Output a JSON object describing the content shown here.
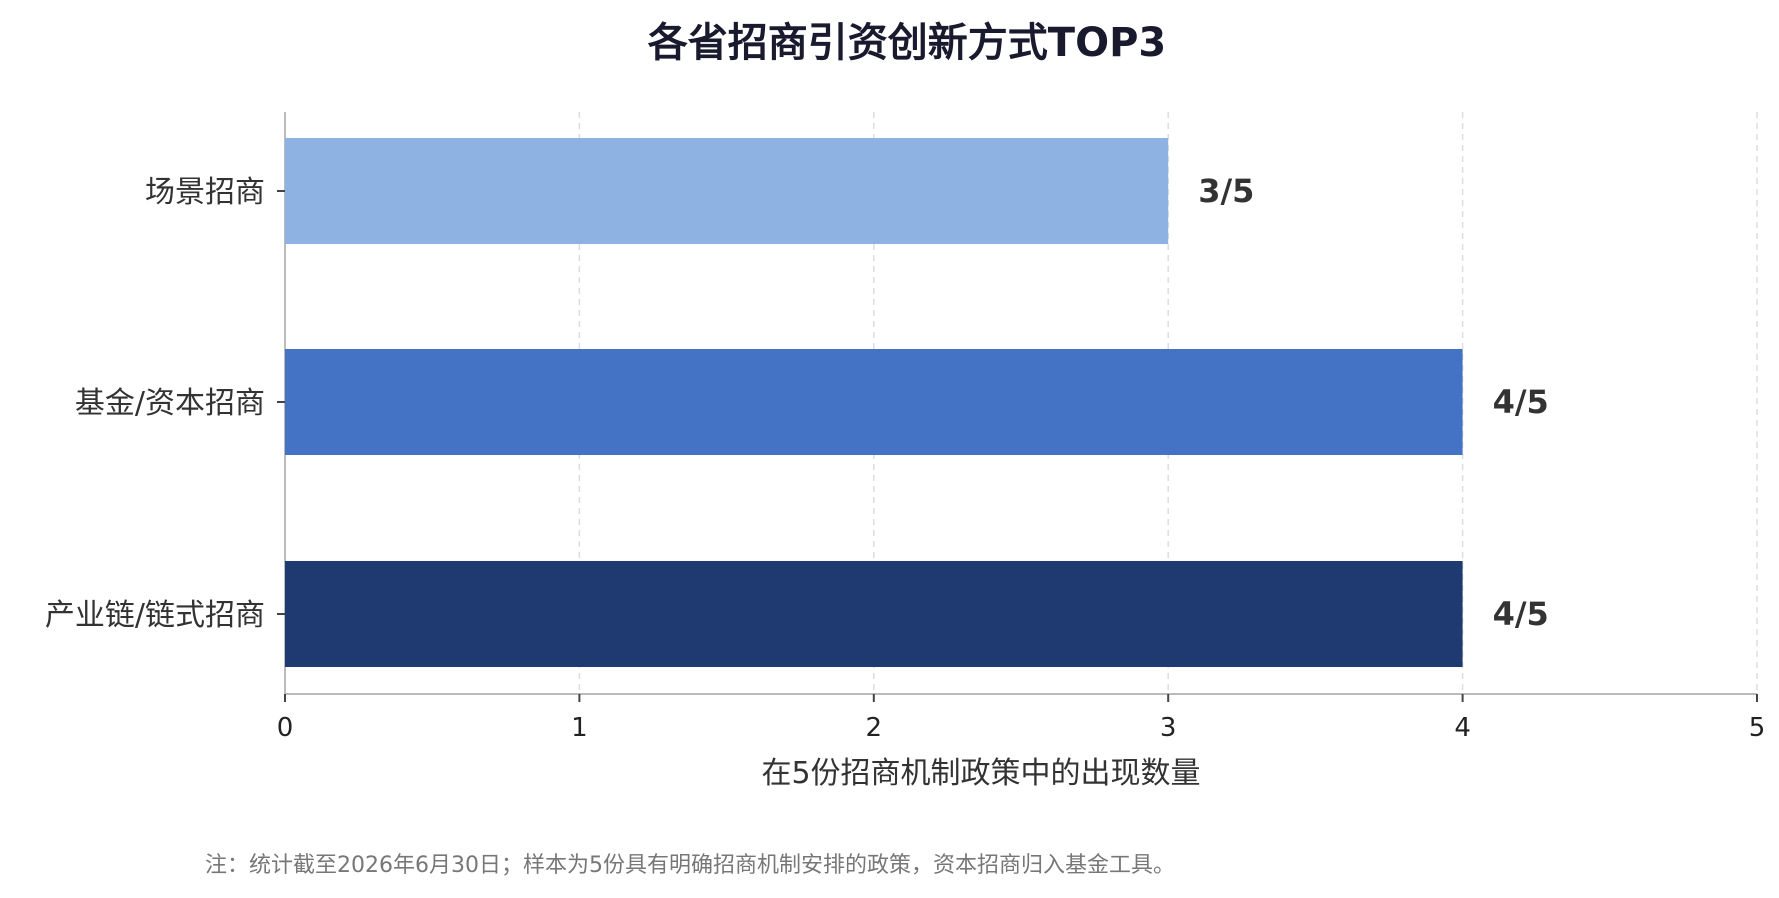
{
  "chart_data": {
    "type": "bar",
    "orientation": "horizontal",
    "title": "各省招商引资创新方式TOP3",
    "categories": [
      "场景招商",
      "基金/资本招商",
      "产业链/链式招商"
    ],
    "values": [
      3,
      4,
      4
    ],
    "data_labels": [
      "3/5",
      "4/5",
      "4/5"
    ],
    "colors": [
      "#8EB3E2",
      "#4472C4",
      "#1F3A70"
    ],
    "xlabel": "在5份招商机制政策中的出现数量",
    "ylabel": "",
    "xlim": [
      0,
      5
    ],
    "x_ticks": [
      "0",
      "1",
      "2",
      "3",
      "4",
      "5"
    ],
    "grid": "vertical dashed",
    "note": "注：统计截至2026年6月30日；样本为5份具有明确招商机制安排的政策，资本招商归入基金工具。"
  }
}
